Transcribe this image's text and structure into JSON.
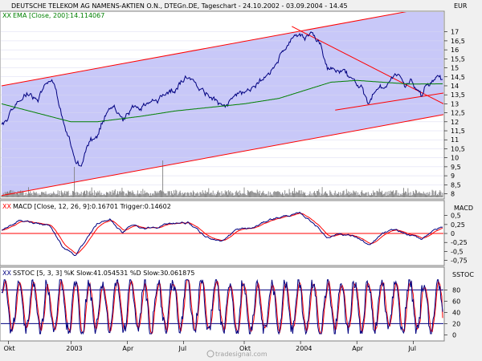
{
  "header": {
    "title": "DEUTSCHE TELEKOM AG NAMENS-AKTIEN O.N., DTEGn.DE, Tageschart - 24.10.2002 - 03.09.2004 - 14.45",
    "currency": "EUR",
    "watermark": "tradesignal.com"
  },
  "colors": {
    "price": "#000080",
    "ema": "#008000",
    "channel": "#ff0000",
    "channel_fill": "#c8c8f8",
    "macd": "#000080",
    "trigger": "#ff0000",
    "stoch_k": "#000080",
    "stoch_d": "#ff0000",
    "volume": "#808080",
    "panel_bg": "#ffffff",
    "page_bg": "#f0f0f0"
  },
  "chart_data": [
    {
      "panel": "price",
      "type": "line",
      "legend": "EMA [Close, 200]:14.114067",
      "y_tick_labels": [
        "17",
        "16,5",
        "16",
        "15,5",
        "15",
        "14,5",
        "14",
        "13,5",
        "13",
        "12,5",
        "12",
        "11,5",
        "11",
        "10,5",
        "10",
        "9,5",
        "9",
        "8,5",
        "8"
      ],
      "ylim": [
        7.8,
        17.7
      ],
      "x_tick_labels": [
        "Okt",
        "2003",
        "Apr",
        "Jul",
        "Okt",
        "2004",
        "Apr",
        "Jul"
      ],
      "x_tick_index": [
        8,
        80,
        145,
        210,
        280,
        345,
        410,
        475
      ],
      "n_days": 510,
      "price_keypoints": [
        [
          0,
          11.8
        ],
        [
          10,
          12.6
        ],
        [
          20,
          13.2
        ],
        [
          30,
          13.6
        ],
        [
          42,
          13.3
        ],
        [
          52,
          14.3
        ],
        [
          58,
          14.4
        ],
        [
          65,
          13.2
        ],
        [
          72,
          11.8
        ],
        [
          78,
          11.0
        ],
        [
          85,
          9.8
        ],
        [
          92,
          9.5
        ],
        [
          98,
          10.6
        ],
        [
          104,
          10.9
        ],
        [
          110,
          11.2
        ],
        [
          120,
          12.4
        ],
        [
          130,
          13.0
        ],
        [
          140,
          12.1
        ],
        [
          150,
          12.8
        ],
        [
          160,
          12.9
        ],
        [
          170,
          13.0
        ],
        [
          180,
          13.2
        ],
        [
          190,
          13.6
        ],
        [
          200,
          13.8
        ],
        [
          210,
          14.3
        ],
        [
          220,
          14.5
        ],
        [
          230,
          13.9
        ],
        [
          240,
          13.3
        ],
        [
          250,
          13.1
        ],
        [
          258,
          12.8
        ],
        [
          265,
          13.2
        ],
        [
          275,
          13.6
        ],
        [
          290,
          13.9
        ],
        [
          305,
          14.4
        ],
        [
          315,
          15.1
        ],
        [
          325,
          16.0
        ],
        [
          335,
          16.5
        ],
        [
          343,
          17.0
        ],
        [
          350,
          16.6
        ],
        [
          358,
          16.8
        ],
        [
          368,
          16.2
        ],
        [
          375,
          15.0
        ],
        [
          385,
          14.8
        ],
        [
          395,
          14.7
        ],
        [
          405,
          14.4
        ],
        [
          415,
          13.9
        ],
        [
          422,
          13.1
        ],
        [
          428,
          13.5
        ],
        [
          435,
          13.9
        ],
        [
          442,
          14.0
        ],
        [
          450,
          14.4
        ],
        [
          458,
          14.6
        ],
        [
          465,
          14.1
        ],
        [
          472,
          14.3
        ],
        [
          478,
          13.7
        ],
        [
          484,
          13.5
        ],
        [
          490,
          13.9
        ],
        [
          497,
          14.3
        ],
        [
          503,
          14.7
        ],
        [
          508,
          14.3
        ]
      ],
      "ema_keypoints": [
        [
          0,
          13.0
        ],
        [
          40,
          12.5
        ],
        [
          80,
          12.0
        ],
        [
          110,
          12.0
        ],
        [
          160,
          12.3
        ],
        [
          200,
          12.6
        ],
        [
          240,
          12.8
        ],
        [
          280,
          13.0
        ],
        [
          320,
          13.3
        ],
        [
          360,
          13.9
        ],
        [
          380,
          14.2
        ],
        [
          410,
          14.3
        ],
        [
          440,
          14.2
        ],
        [
          470,
          14.1
        ],
        [
          508,
          14.11
        ]
      ],
      "upper_channel": [
        [
          0,
          14.0
        ],
        [
          510,
          18.5
        ]
      ],
      "lower_channel": [
        [
          0,
          7.9
        ],
        [
          510,
          12.4
        ]
      ],
      "resistance_line": [
        [
          335,
          17.3
        ],
        [
          510,
          13.0
        ]
      ],
      "support_line": [
        [
          385,
          12.65
        ],
        [
          510,
          13.6
        ]
      ]
    },
    {
      "panel": "macd",
      "type": "line",
      "legend": "MACD [Close, 12, 26, 9]:0.16701 Trigger:0.14602",
      "series": [
        {
          "name": "MACD",
          "value": 0.16701
        },
        {
          "name": "Trigger",
          "value": 0.14602
        }
      ],
      "y_tick_labels": [
        "0,5",
        "0,25",
        "0",
        "-0,25",
        "-0,5",
        "-0,75"
      ],
      "ylim": [
        -0.85,
        0.65
      ],
      "zero_line": 0,
      "macd_keypoints": [
        [
          0,
          0.1
        ],
        [
          20,
          0.35
        ],
        [
          40,
          0.3
        ],
        [
          55,
          0.25
        ],
        [
          70,
          -0.35
        ],
        [
          85,
          -0.6
        ],
        [
          95,
          -0.3
        ],
        [
          110,
          0.25
        ],
        [
          125,
          0.4
        ],
        [
          140,
          0.0
        ],
        [
          150,
          0.25
        ],
        [
          165,
          0.15
        ],
        [
          180,
          0.2
        ],
        [
          200,
          0.3
        ],
        [
          215,
          0.3
        ],
        [
          235,
          -0.1
        ],
        [
          255,
          -0.2
        ],
        [
          270,
          0.1
        ],
        [
          290,
          0.15
        ],
        [
          310,
          0.4
        ],
        [
          330,
          0.5
        ],
        [
          345,
          0.55
        ],
        [
          360,
          0.3
        ],
        [
          375,
          -0.1
        ],
        [
          390,
          0.0
        ],
        [
          410,
          -0.1
        ],
        [
          425,
          -0.35
        ],
        [
          440,
          0.0
        ],
        [
          455,
          0.1
        ],
        [
          470,
          -0.05
        ],
        [
          485,
          -0.15
        ],
        [
          495,
          0.05
        ],
        [
          508,
          0.17
        ]
      ]
    },
    {
      "panel": "stochastic",
      "type": "line",
      "legend": "SSTOC [5, 3, 3]  %K Slow:41.054531  %D Slow:30.061875",
      "series": [
        {
          "name": "%K Slow",
          "value": 41.054531
        },
        {
          "name": "%D Slow",
          "value": 30.061875
        }
      ],
      "y_tick_labels": [
        "80",
        "60",
        "40",
        "20",
        "0"
      ],
      "ylim": [
        -8,
        102
      ],
      "levels": [
        20,
        80
      ]
    }
  ],
  "panels": {
    "price_label": "EUR",
    "macd_label": "MACD",
    "stoch_label": "SSTOC"
  }
}
